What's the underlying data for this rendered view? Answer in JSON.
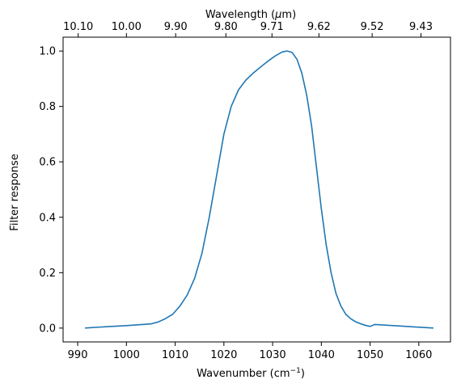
{
  "chart_data": {
    "type": "line",
    "xlabel": "Wavenumber (cm",
    "xlabel_sup": "−1",
    "xlabel_end": ")",
    "ylabel": "Filter response",
    "top_xlabel_pre": "Wavelength (",
    "top_xlabel_mu": "μ",
    "top_xlabel_post": "m)",
    "xlim": [
      987,
      1066.5
    ],
    "ylim": [
      -0.05,
      1.05
    ],
    "x_ticks": [
      {
        "value": 990,
        "label": "990"
      },
      {
        "value": 1000,
        "label": "1000"
      },
      {
        "value": 1010,
        "label": "1010"
      },
      {
        "value": 1020,
        "label": "1020"
      },
      {
        "value": 1030,
        "label": "1030"
      },
      {
        "value": 1040,
        "label": "1040"
      },
      {
        "value": 1050,
        "label": "1050"
      },
      {
        "value": 1060,
        "label": "1060"
      }
    ],
    "y_ticks": [
      {
        "value": 0.0,
        "label": "0.0"
      },
      {
        "value": 0.2,
        "label": "0.2"
      },
      {
        "value": 0.4,
        "label": "0.4"
      },
      {
        "value": 0.6,
        "label": "0.6"
      },
      {
        "value": 0.8,
        "label": "0.8"
      },
      {
        "value": 1.0,
        "label": "1.0"
      }
    ],
    "top_ticks": [
      {
        "value": 10.1,
        "label": "10.10"
      },
      {
        "value": 10.0,
        "label": "10.00"
      },
      {
        "value": 9.9,
        "label": "9.90"
      },
      {
        "value": 9.8,
        "label": "9.80"
      },
      {
        "value": 9.71,
        "label": "9.71"
      },
      {
        "value": 9.62,
        "label": "9.62"
      },
      {
        "value": 9.52,
        "label": "9.52"
      },
      {
        "value": 9.43,
        "label": "9.43"
      }
    ],
    "series": [
      {
        "color": "#1f77b4",
        "x": [
          991.5,
          995,
          1000,
          1005,
          1006.5,
          1008,
          1009.5,
          1011,
          1012.5,
          1014,
          1015.5,
          1017,
          1018.5,
          1020,
          1021.5,
          1023,
          1024.5,
          1026,
          1027.5,
          1029,
          1030.5,
          1032,
          1033,
          1034,
          1035,
          1036,
          1037,
          1038,
          1039,
          1040,
          1041,
          1042,
          1043,
          1044,
          1045,
          1046,
          1047,
          1048,
          1049,
          1050,
          1051,
          1063
        ],
        "y": [
          0.0,
          0.004,
          0.009,
          0.015,
          0.022,
          0.034,
          0.05,
          0.08,
          0.12,
          0.18,
          0.27,
          0.4,
          0.55,
          0.7,
          0.8,
          0.86,
          0.895,
          0.92,
          0.942,
          0.963,
          0.982,
          0.997,
          1.0,
          0.995,
          0.97,
          0.92,
          0.84,
          0.73,
          0.58,
          0.43,
          0.3,
          0.2,
          0.125,
          0.08,
          0.05,
          0.034,
          0.023,
          0.016,
          0.01,
          0.006,
          0.013,
          0.0
        ]
      }
    ]
  }
}
